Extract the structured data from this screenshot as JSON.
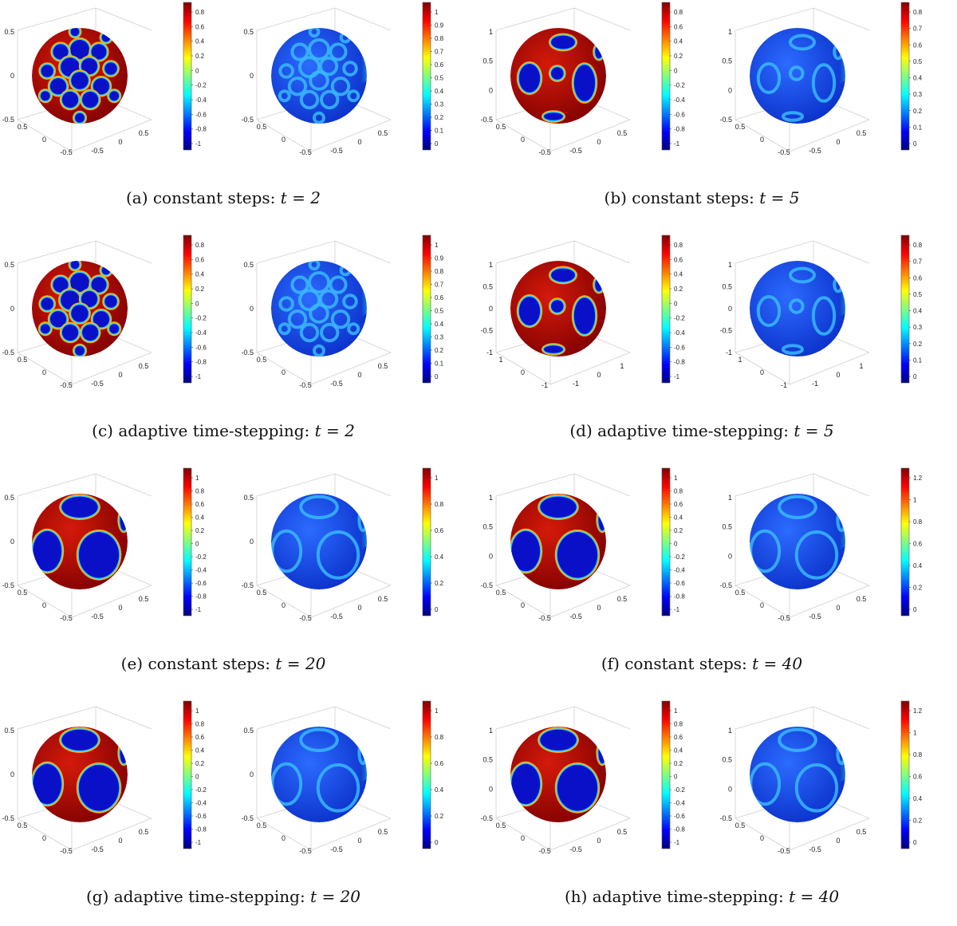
{
  "colors": {
    "axis": "#cfcfcf",
    "jet": [
      "#00007f",
      "#0000ff",
      "#007fff",
      "#00ffff",
      "#7fff7f",
      "#ffff00",
      "#ff7f00",
      "#ff0000",
      "#7f0000"
    ]
  },
  "panels": [
    {
      "id": "a",
      "label": "(a)",
      "text": "constant steps:",
      "time": "t = 2",
      "plots": [
        {
          "kind": "phase",
          "pattern": "dense",
          "cbar_ticks": [
            "0.8",
            "0.6",
            "0.4",
            "0.2",
            "0",
            "-0.2",
            "-0.4",
            "-0.6",
            "-0.8",
            "-1"
          ],
          "axis_y_ticks": [
            "0.5",
            "0",
            "-0.5"
          ],
          "axis_x_ticks": [
            "0.5",
            "0",
            "-0.5"
          ],
          "axis_z_ticks": [
            "0.5",
            "0",
            "-0.5"
          ]
        },
        {
          "kind": "energy",
          "pattern": "dense",
          "cbar_ticks": [
            "1",
            "0.9",
            "0.8",
            "0.7",
            "0.6",
            "0.5",
            "0.4",
            "0.3",
            "0.2",
            "0.1",
            "0"
          ],
          "axis_y_ticks": [
            "0.5",
            "0",
            "-0.5"
          ],
          "axis_x_ticks": [
            "0.5",
            "0",
            "-0.5"
          ],
          "axis_z_ticks": [
            "0.5",
            "0",
            "-0.5"
          ]
        }
      ]
    },
    {
      "id": "b",
      "label": "(b)",
      "text": "constant steps:",
      "time": "t = 5",
      "plots": [
        {
          "kind": "phase",
          "pattern": "medium",
          "cbar_ticks": [
            "0.8",
            "0.6",
            "0.4",
            "0.2",
            "0",
            "-0.2",
            "-0.4",
            "-0.6",
            "-0.8",
            "-1"
          ],
          "axis_y_ticks": [
            "1",
            "0.5",
            "0",
            "-0.5"
          ],
          "axis_x_ticks": [
            "0.5",
            "0",
            "-0.5"
          ],
          "axis_z_ticks": [
            "0.5",
            "0",
            "-0.5"
          ]
        },
        {
          "kind": "energy",
          "pattern": "medium",
          "cbar_ticks": [
            "0.8",
            "0.7",
            "0.6",
            "0.5",
            "0.4",
            "0.3",
            "0.2",
            "0.1",
            "0"
          ],
          "axis_y_ticks": [
            "1",
            "0.5",
            "0",
            "-0.5"
          ],
          "axis_x_ticks": [
            "0.5",
            "0",
            "-0.5"
          ],
          "axis_z_ticks": [
            "0.5",
            "0",
            "-0.5"
          ]
        }
      ]
    },
    {
      "id": "c",
      "label": "(c)",
      "text": "adaptive time-stepping:",
      "time": "t = 2",
      "plots": [
        {
          "kind": "phase",
          "pattern": "dense",
          "cbar_ticks": [
            "0.8",
            "0.6",
            "0.4",
            "0.2",
            "0",
            "-0.2",
            "-0.4",
            "-0.6",
            "-0.8",
            "-1"
          ],
          "axis_y_ticks": [
            "0.5",
            "0",
            "-0.5"
          ],
          "axis_x_ticks": [
            "0.5",
            "0",
            "-0.5"
          ],
          "axis_z_ticks": [
            "0.5",
            "0",
            "-0.5"
          ]
        },
        {
          "kind": "energy",
          "pattern": "dense",
          "cbar_ticks": [
            "1",
            "0.9",
            "0.8",
            "0.7",
            "0.6",
            "0.5",
            "0.4",
            "0.3",
            "0.2",
            "0.1",
            "0"
          ],
          "axis_y_ticks": [
            "0.5",
            "0",
            "-0.5"
          ],
          "axis_x_ticks": [
            "0.5",
            "0",
            "-0.5"
          ],
          "axis_z_ticks": [
            "0.5",
            "0",
            "-0.5"
          ]
        }
      ]
    },
    {
      "id": "d",
      "label": "(d)",
      "text": "adaptive time-stepping:",
      "time": "t = 5",
      "plots": [
        {
          "kind": "phase",
          "pattern": "medium",
          "cbar_ticks": [
            "0.8",
            "0.6",
            "0.4",
            "0.2",
            "0",
            "-0.2",
            "-0.4",
            "-0.6",
            "-0.8",
            "-1"
          ],
          "axis_y_ticks": [
            "1",
            "0.5",
            "0",
            "-0.5",
            "-1"
          ],
          "axis_x_ticks": [
            "1",
            "0",
            "-1"
          ],
          "axis_z_ticks": [
            "1",
            "0",
            "-1"
          ]
        },
        {
          "kind": "energy",
          "pattern": "medium",
          "cbar_ticks": [
            "0.8",
            "0.7",
            "0.6",
            "0.5",
            "0.4",
            "0.3",
            "0.2",
            "0.1",
            "0"
          ],
          "axis_y_ticks": [
            "1",
            "0.5",
            "0",
            "-0.5",
            "-1"
          ],
          "axis_x_ticks": [
            "1",
            "0",
            "-1"
          ],
          "axis_z_ticks": [
            "1",
            "0",
            "-1"
          ]
        }
      ]
    },
    {
      "id": "e",
      "label": "(e)",
      "text": "constant steps:",
      "time": "t = 20",
      "plots": [
        {
          "kind": "phase",
          "pattern": "coarse",
          "cbar_ticks": [
            "1",
            "0.8",
            "0.6",
            "0.4",
            "0.2",
            "0",
            "-0.2",
            "-0.4",
            "-0.6",
            "-0.8",
            "-1"
          ],
          "axis_y_ticks": [
            "0.5",
            "0",
            "-0.5"
          ],
          "axis_x_ticks": [
            "0.5",
            "0",
            "-0.5"
          ],
          "axis_z_ticks": [
            "0.5",
            "0",
            "-0.5"
          ]
        },
        {
          "kind": "energy",
          "pattern": "coarse",
          "cbar_ticks": [
            "1",
            "0.8",
            "0.6",
            "0.4",
            "0.2",
            "0"
          ],
          "axis_y_ticks": [
            "0.5",
            "0",
            "-0.5"
          ],
          "axis_x_ticks": [
            "0.5",
            "0",
            "-0.5"
          ],
          "axis_z_ticks": [
            "0.5",
            "0",
            "-0.5"
          ]
        }
      ]
    },
    {
      "id": "f",
      "label": "(f)",
      "text": "constant steps:",
      "time": "t = 40",
      "plots": [
        {
          "kind": "phase",
          "pattern": "coarse",
          "cbar_ticks": [
            "1",
            "0.8",
            "0.6",
            "0.4",
            "0.2",
            "0",
            "-0.2",
            "-0.4",
            "-0.6",
            "-0.8",
            "-1"
          ],
          "axis_y_ticks": [
            "1",
            "0.5",
            "0",
            "-0.5"
          ],
          "axis_x_ticks": [
            "0.5",
            "0",
            "-0.5"
          ],
          "axis_z_ticks": [
            "0.5",
            "0",
            "-0.5"
          ]
        },
        {
          "kind": "energy",
          "pattern": "coarse",
          "cbar_ticks": [
            "1.2",
            "1",
            "0.8",
            "0.6",
            "0.4",
            "0.2",
            "0"
          ],
          "axis_y_ticks": [
            "1",
            "0.5",
            "0",
            "-0.5"
          ],
          "axis_x_ticks": [
            "0.5",
            "0",
            "-0.5"
          ],
          "axis_z_ticks": [
            "0.5",
            "0",
            "-0.5"
          ]
        }
      ]
    },
    {
      "id": "g",
      "label": "(g)",
      "text": "adaptive time-stepping:",
      "time": "t = 20",
      "plots": [
        {
          "kind": "phase",
          "pattern": "coarse",
          "cbar_ticks": [
            "1",
            "0.8",
            "0.6",
            "0.4",
            "0.2",
            "0",
            "-0.2",
            "-0.4",
            "-0.6",
            "-0.8",
            "-1"
          ],
          "axis_y_ticks": [
            "0.5",
            "0",
            "-0.5"
          ],
          "axis_x_ticks": [
            "0.5",
            "0",
            "-0.5"
          ],
          "axis_z_ticks": [
            "0.5",
            "0",
            "-0.5"
          ]
        },
        {
          "kind": "energy",
          "pattern": "coarse",
          "cbar_ticks": [
            "1",
            "0.8",
            "0.6",
            "0.4",
            "0.2",
            "0"
          ],
          "axis_y_ticks": [
            "0.5",
            "0",
            "-0.5"
          ],
          "axis_x_ticks": [
            "0.5",
            "0",
            "-0.5"
          ],
          "axis_z_ticks": [
            "0.5",
            "0",
            "-0.5"
          ]
        }
      ]
    },
    {
      "id": "h",
      "label": "(h)",
      "text": "adaptive time-stepping:",
      "time": "t = 40",
      "plots": [
        {
          "kind": "phase",
          "pattern": "coarse",
          "cbar_ticks": [
            "1",
            "0.8",
            "0.6",
            "0.4",
            "0.2",
            "0",
            "-0.2",
            "-0.4",
            "-0.6",
            "-0.8",
            "-1"
          ],
          "axis_y_ticks": [
            "1",
            "0.5",
            "0",
            "-0.5"
          ],
          "axis_x_ticks": [
            "0.5",
            "0",
            "-0.5"
          ],
          "axis_z_ticks": [
            "0.5",
            "0",
            "-0.5"
          ]
        },
        {
          "kind": "energy",
          "pattern": "coarse",
          "cbar_ticks": [
            "1.2",
            "1",
            "0.8",
            "0.6",
            "0.4",
            "0.2",
            "0"
          ],
          "axis_y_ticks": [
            "1",
            "0.5",
            "0",
            "-0.5"
          ],
          "axis_x_ticks": [
            "0.5",
            "0",
            "-0.5"
          ],
          "axis_z_ticks": [
            "0.5",
            "0",
            "-0.5"
          ]
        }
      ]
    }
  ]
}
